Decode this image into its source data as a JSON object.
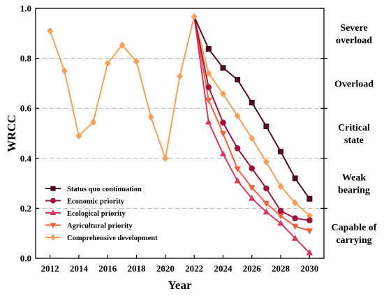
{
  "chart_data": {
    "type": "line",
    "xlabel": "Year",
    "ylabel": "WRCC",
    "xlim": [
      2011,
      2031
    ],
    "ylim": [
      0,
      1.0
    ],
    "x_ticks": [
      "2012",
      "2014",
      "2016",
      "2018",
      "2020",
      "2022",
      "2024",
      "2026",
      "2028",
      "2030"
    ],
    "y_ticks": [
      "0.0",
      "0.2",
      "0.4",
      "0.6",
      "0.8",
      "1.0"
    ],
    "grid": "horizontal dashed at 0.2, 0.4, 0.6, 0.8",
    "legend_position": "bottom-left",
    "historical": {
      "x": [
        2012,
        2013,
        2014,
        2015,
        2016,
        2017,
        2018,
        2019,
        2020,
        2021,
        2022
      ],
      "y": [
        0.91,
        0.75,
        0.49,
        0.545,
        0.78,
        0.853,
        0.787,
        0.565,
        0.4,
        0.728,
        0.967
      ],
      "color": "#F5A05A"
    },
    "series": [
      {
        "name": "Status quo continuation",
        "color": "#4A0F20",
        "marker": "square",
        "x": [
          2022,
          2023,
          2024,
          2025,
          2026,
          2027,
          2028,
          2029,
          2030
        ],
        "y": [
          0.967,
          0.838,
          0.762,
          0.715,
          0.623,
          0.528,
          0.427,
          0.32,
          0.238
        ]
      },
      {
        "name": "Economic priority",
        "color": "#A0143C",
        "marker": "circle",
        "x": [
          2022,
          2023,
          2024,
          2025,
          2026,
          2027,
          2028,
          2029,
          2030
        ],
        "y": [
          0.967,
          0.685,
          0.543,
          0.44,
          0.36,
          0.28,
          0.19,
          0.16,
          0.152
        ]
      },
      {
        "name": "Ecological priority",
        "color": "#D9385A",
        "marker": "triangle-up",
        "x": [
          2022,
          2023,
          2024,
          2025,
          2026,
          2027,
          2028,
          2029,
          2030
        ],
        "y": [
          0.967,
          0.545,
          0.418,
          0.31,
          0.24,
          0.185,
          0.14,
          0.08,
          0.022
        ]
      },
      {
        "name": "Agricultural priority",
        "color": "#F0603E",
        "marker": "triangle-down",
        "x": [
          2022,
          2023,
          2024,
          2025,
          2026,
          2027,
          2028,
          2029,
          2030
        ],
        "y": [
          0.967,
          0.633,
          0.5,
          0.358,
          0.283,
          0.22,
          0.17,
          0.128,
          0.11
        ]
      },
      {
        "name": "Comprehensive development",
        "color": "#F5A05A",
        "marker": "diamond",
        "x": [
          2022,
          2023,
          2024,
          2025,
          2026,
          2027,
          2028,
          2029,
          2030
        ],
        "y": [
          0.967,
          0.74,
          0.658,
          0.57,
          0.48,
          0.385,
          0.288,
          0.222,
          0.17
        ]
      }
    ],
    "zones": [
      {
        "lines": [
          "Severe",
          "overload"
        ],
        "center": 0.9
      },
      {
        "lines": [
          "Overload"
        ],
        "center": 0.7
      },
      {
        "lines": [
          "Critical",
          "state"
        ],
        "center": 0.5
      },
      {
        "lines": [
          "Weak",
          "bearing"
        ],
        "center": 0.3
      },
      {
        "lines": [
          "Capable of",
          "carrying"
        ],
        "center": 0.1
      }
    ]
  }
}
